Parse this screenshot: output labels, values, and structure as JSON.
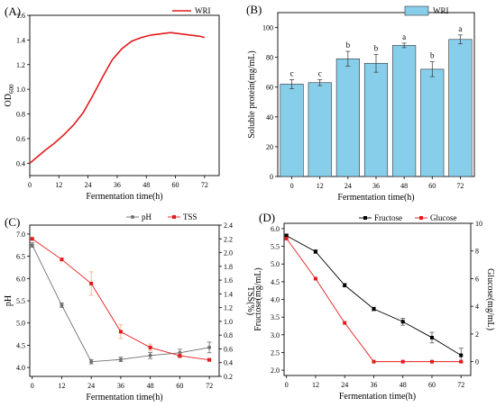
{
  "colors": {
    "red": "#e41a1c",
    "bar": "#87ceeb",
    "black": "#000000",
    "gray": "#707070"
  },
  "chart_data": [
    {
      "panel": "(A)",
      "type": "line",
      "xlabel": "Fermentation time(h)",
      "ylabel": "OD",
      "ylabel_sub": "600",
      "xlim": [
        0,
        78
      ],
      "ylim": [
        0.3,
        1.6
      ],
      "xticks": [
        0,
        12,
        24,
        36,
        48,
        60,
        72
      ],
      "yticks": [
        0.4,
        0.6,
        0.8,
        1.0,
        1.2,
        1.4,
        1.6
      ],
      "ytick_labels": [
        "0.4",
        "0.6",
        "0.8",
        "1.0",
        "1.2",
        "1.4",
        "1.6"
      ],
      "legend": "top-right",
      "series": [
        {
          "name": "WRI",
          "color": "#e41a1c",
          "x": [
            0,
            3,
            6,
            10,
            14,
            18,
            22,
            26,
            30,
            34,
            38,
            42,
            46,
            50,
            54,
            58,
            62,
            66,
            70,
            72
          ],
          "y": [
            0.4,
            0.45,
            0.5,
            0.56,
            0.63,
            0.71,
            0.81,
            0.95,
            1.1,
            1.24,
            1.33,
            1.39,
            1.42,
            1.44,
            1.45,
            1.46,
            1.45,
            1.44,
            1.43,
            1.42
          ]
        }
      ]
    },
    {
      "panel": "(B)",
      "type": "bar",
      "xlabel": "Fermentation time(h)",
      "ylabel": "Soluble protein(mg/mL)",
      "ylim": [
        0,
        110
      ],
      "yticks": [
        0,
        20,
        40,
        60,
        80,
        100
      ],
      "categories": [
        "0",
        "12",
        "24",
        "36",
        "48",
        "60",
        "72"
      ],
      "legend": "top-right",
      "series": [
        {
          "name": "WRI",
          "color": "#87ceeb",
          "values": [
            62,
            63,
            79,
            76,
            88,
            72,
            92
          ],
          "errors": [
            3,
            2,
            5,
            6,
            1.5,
            5,
            3
          ],
          "letters": [
            "c",
            "c",
            "b",
            "b",
            "a",
            "b",
            "a"
          ]
        }
      ]
    },
    {
      "panel": "(C)",
      "type": "line",
      "xlabel": "Fermentation time(h)",
      "ylabel": "pH",
      "ylabel_right": "TSS(%)",
      "xlim": [
        -1,
        76
      ],
      "xticks": [
        0,
        12,
        24,
        36,
        48,
        60,
        72
      ],
      "ylim": [
        3.8,
        7.2
      ],
      "yticks": [
        4.0,
        4.5,
        5.0,
        5.5,
        6.0,
        6.5,
        7.0
      ],
      "ytick_labels": [
        "4.0",
        "4.5",
        "5.0",
        "5.5",
        "6.0",
        "6.5",
        "7.0"
      ],
      "ylim_right": [
        0.2,
        2.4
      ],
      "yticks_right": [
        0.2,
        0.4,
        0.6,
        0.8,
        1.0,
        1.2,
        1.4,
        1.6,
        1.8,
        2.0,
        2.2,
        2.4
      ],
      "ytick_labels_right": [
        "0.2",
        "0.4",
        "0.6",
        "0.8",
        "1.0",
        "1.2",
        "1.4",
        "1.6",
        "1.8",
        "2.0",
        "2.2",
        "2.4"
      ],
      "legend": "top-center",
      "series": [
        {
          "name": "pH",
          "axis": "left",
          "color": "#707070",
          "x": [
            0,
            12,
            24,
            36,
            48,
            60,
            72
          ],
          "y": [
            6.75,
            5.4,
            4.13,
            4.18,
            4.27,
            4.33,
            4.45
          ],
          "errors": [
            0.05,
            0.05,
            0.05,
            0.05,
            0.07,
            0.08,
            0.12
          ]
        },
        {
          "name": "TSS",
          "axis": "right",
          "color": "#e41a1c",
          "x": [
            0,
            12,
            24,
            36,
            48,
            60,
            72
          ],
          "y": [
            2.2,
            1.9,
            1.55,
            0.85,
            0.62,
            0.5,
            0.44
          ],
          "errors": [
            0.02,
            0.02,
            0.17,
            0.1,
            0.05,
            0.03,
            0.02
          ]
        }
      ]
    },
    {
      "panel": "(D)",
      "type": "line",
      "xlabel": "Fermentation time(h)",
      "ylabel": "Fructose(mg/mL)",
      "ylabel_right": "Glucose(mg/mL)",
      "xlim": [
        -1,
        76
      ],
      "xticks": [
        0,
        12,
        24,
        36,
        48,
        60,
        72
      ],
      "ylim": [
        1.85,
        6.15
      ],
      "yticks": [
        2.0,
        2.5,
        3.0,
        3.5,
        4.0,
        4.5,
        5.0,
        5.5,
        6.0
      ],
      "ytick_labels": [
        "2.0",
        "2.5",
        "3.0",
        "3.5",
        "4.0",
        "4.5",
        "5.0",
        "5.5",
        "6.0"
      ],
      "ylim_right": [
        -1.0,
        10.0
      ],
      "yticks_right": [
        0,
        2,
        4,
        6,
        8,
        10
      ],
      "legend": "top-center",
      "series": [
        {
          "name": "Fructose",
          "axis": "left",
          "color": "#000000",
          "x": [
            0,
            12,
            24,
            36,
            48,
            60,
            72
          ],
          "y": [
            5.8,
            5.35,
            4.4,
            3.73,
            3.37,
            2.92,
            2.42
          ],
          "errors": [
            0.05,
            0.05,
            0.05,
            0.05,
            0.1,
            0.15,
            0.2
          ]
        },
        {
          "name": "Glucose",
          "axis": "right",
          "color": "#e41a1c",
          "x": [
            0,
            12,
            24,
            36,
            48,
            60,
            72
          ],
          "y": [
            8.9,
            6.0,
            2.8,
            0,
            0,
            0,
            0
          ],
          "errors": [
            0,
            0,
            0,
            0,
            0,
            0,
            0
          ]
        }
      ]
    }
  ]
}
